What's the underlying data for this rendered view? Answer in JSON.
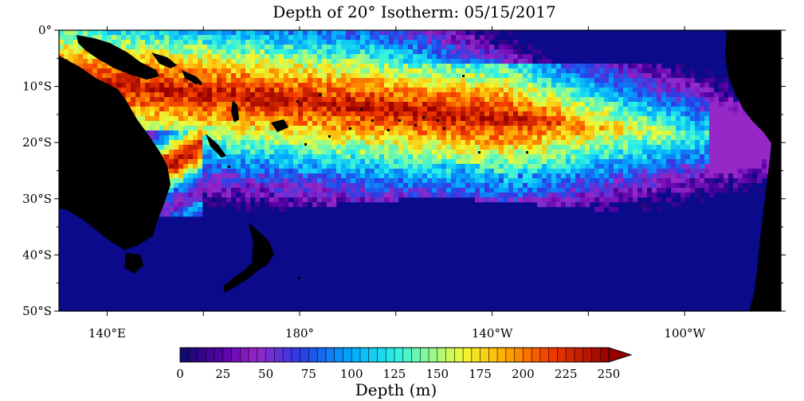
{
  "title": "Depth of 20° Isotherm: 05/15/2017",
  "map": {
    "lat_range": [
      -50,
      0
    ],
    "lon_range_east": [
      130,
      280
    ],
    "lat_labels": [
      {
        "lat": 0,
        "text": "0°"
      },
      {
        "lat": -10,
        "text": "10°S"
      },
      {
        "lat": -20,
        "text": "20°S"
      },
      {
        "lat": -30,
        "text": "30°S"
      },
      {
        "lat": -40,
        "text": "40°S"
      },
      {
        "lat": -50,
        "text": "50°S"
      }
    ],
    "lon_labels": [
      {
        "lon": 140,
        "text": "140°E"
      },
      {
        "lon": 180,
        "text": "180°"
      },
      {
        "lon": 220,
        "text": "140°W"
      },
      {
        "lon": 260,
        "text": "100°W"
      }
    ],
    "minor_lon_ticks": [
      140,
      160,
      180,
      200,
      220,
      240,
      260
    ],
    "colors": {
      "land": "#000000",
      "deep_ocean": "#0a0a8a",
      "frame": "#000000"
    }
  },
  "colorbar": {
    "label": "Depth (m)",
    "units": "m",
    "min": 0,
    "max": 250,
    "step": 5,
    "tick_labels": [
      "0",
      "25",
      "50",
      "75",
      "100",
      "125",
      "150",
      "175",
      "200",
      "225",
      "250"
    ],
    "extend": "max"
  }
}
